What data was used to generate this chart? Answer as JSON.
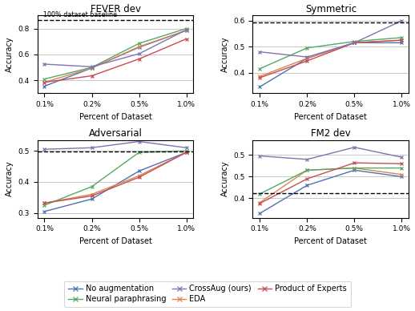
{
  "x_labels": [
    "0.1%",
    "0.2%",
    "0.5%",
    "1.0%"
  ],
  "x_values": [
    0,
    1,
    2,
    3
  ],
  "subplots": [
    {
      "title": "FEVER dev",
      "baseline": 0.868,
      "baseline_label": "100% dataset baseline",
      "ylim": [
        0.3,
        0.9
      ],
      "yticks": [
        0.4,
        0.6,
        0.8
      ],
      "series": {
        "no_aug": [
          0.355,
          0.495,
          0.655,
          0.785
        ],
        "eda": [
          0.385,
          0.495,
          0.66,
          0.785
        ],
        "neural_para": [
          0.41,
          0.5,
          0.685,
          0.8
        ],
        "prod_exp": [
          0.385,
          0.435,
          0.565,
          0.72
        ],
        "crossaug": [
          0.525,
          0.505,
          0.605,
          0.79
        ]
      }
    },
    {
      "title": "Symmetric",
      "baseline": 0.592,
      "baseline_label": null,
      "ylim": [
        0.32,
        0.62
      ],
      "yticks": [
        0.4,
        0.5,
        0.6
      ],
      "series": {
        "no_aug": [
          0.345,
          0.455,
          0.515,
          0.515
        ],
        "eda": [
          0.385,
          0.455,
          0.515,
          0.525
        ],
        "neural_para": [
          0.415,
          0.495,
          0.52,
          0.535
        ],
        "prod_exp": [
          0.38,
          0.445,
          0.515,
          0.525
        ],
        "crossaug": [
          0.48,
          0.46,
          0.515,
          0.6
        ]
      }
    },
    {
      "title": "Adversarial",
      "baseline": 0.498,
      "baseline_label": null,
      "ylim": [
        0.285,
        0.535
      ],
      "yticks": [
        0.3,
        0.4,
        0.5
      ],
      "series": {
        "no_aug": [
          0.305,
          0.345,
          0.435,
          0.495
        ],
        "eda": [
          0.332,
          0.36,
          0.42,
          0.495
        ],
        "neural_para": [
          0.325,
          0.385,
          0.495,
          0.5
        ],
        "prod_exp": [
          0.332,
          0.355,
          0.415,
          0.495
        ],
        "crossaug": [
          0.505,
          0.51,
          0.53,
          0.51
        ]
      }
    },
    {
      "title": "FM2 dev",
      "baseline": 0.411,
      "baseline_label": null,
      "ylim": [
        0.355,
        0.535
      ],
      "yticks": [
        0.4,
        0.45,
        0.5
      ],
      "series": {
        "no_aug": [
          0.365,
          0.43,
          0.465,
          0.45
        ],
        "eda": [
          0.39,
          0.465,
          0.47,
          0.455
        ],
        "neural_para": [
          0.41,
          0.465,
          0.47,
          0.47
        ],
        "prod_exp": [
          0.388,
          0.445,
          0.482,
          0.48
        ],
        "crossaug": [
          0.498,
          0.49,
          0.518,
          0.495
        ]
      }
    }
  ],
  "colors": {
    "no_aug": "#4c72b0",
    "eda": "#dd8452",
    "neural_para": "#55a868",
    "prod_exp": "#c44e52",
    "crossaug": "#8172b2"
  },
  "legend": {
    "no_aug": "No augmentation",
    "eda": "EDA",
    "neural_para": "Neural paraphrasing",
    "prod_exp": "Product of Experts",
    "crossaug": "CrossAug (ours)"
  },
  "series_order": [
    "no_aug",
    "eda",
    "neural_para",
    "prod_exp",
    "crossaug"
  ],
  "legend_order": [
    "no_aug",
    "neural_para",
    "crossaug",
    "eda",
    "prod_exp"
  ]
}
